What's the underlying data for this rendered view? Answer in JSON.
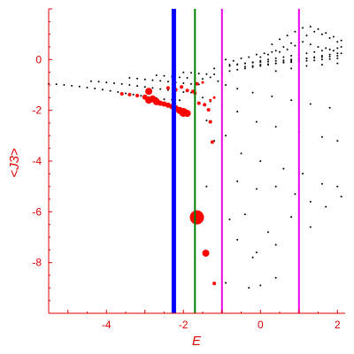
{
  "chart_data": {
    "type": "scatter",
    "title": "",
    "xlabel": "E",
    "ylabel": "<J3>",
    "xlim": [
      -5.5,
      2.2
    ],
    "ylim": [
      -10,
      2
    ],
    "x_ticks": [
      -4,
      -2,
      0,
      2
    ],
    "y_ticks": [
      -8,
      -6,
      -4,
      -2,
      0
    ],
    "grid": false,
    "colors": {
      "axis": "#e00000",
      "series_black": "#000000",
      "series_red": "#ff0000",
      "line_blue": "#0000ff",
      "line_green": "#008000",
      "line_magenta": "#ee00ee"
    },
    "vertical_lines": [
      {
        "x": -2.25,
        "color": "#0000ff",
        "width": 5
      },
      {
        "x": -1.7,
        "color": "#008000",
        "width": 2
      },
      {
        "x": -1.0,
        "color": "#ee00ee",
        "width": 2
      },
      {
        "x": 1.0,
        "color": "#ee00ee",
        "width": 2
      }
    ],
    "series": [
      {
        "color": "#000000",
        "points": [
          [
            -5.5,
            -0.95
          ],
          [
            -5.3,
            -0.97
          ],
          [
            -5.1,
            -1.0
          ],
          [
            -4.9,
            -1.03
          ],
          [
            -4.7,
            -1.06
          ],
          [
            -4.5,
            -1.1
          ],
          [
            -4.3,
            -1.14
          ],
          [
            -4.1,
            -1.18
          ],
          [
            -3.9,
            -1.23
          ],
          [
            -3.7,
            -1.28
          ],
          [
            -3.5,
            -1.33
          ],
          [
            -3.3,
            -1.38
          ],
          [
            -3.1,
            -1.43
          ],
          [
            -2.9,
            -1.48
          ],
          [
            -2.7,
            -1.52
          ],
          [
            -2.5,
            -1.56
          ],
          [
            -2.3,
            -1.58
          ],
          [
            -2.1,
            -1.6
          ],
          [
            -4.4,
            -0.85
          ],
          [
            -4.2,
            -0.87
          ],
          [
            -4.0,
            -0.9
          ],
          [
            -3.8,
            -0.93
          ],
          [
            -3.6,
            -0.96
          ],
          [
            -3.4,
            -1.0
          ],
          [
            -3.2,
            -1.04
          ],
          [
            -3.0,
            -1.08
          ],
          [
            -2.8,
            -1.12
          ],
          [
            -2.6,
            -1.16
          ],
          [
            -2.4,
            -1.2
          ],
          [
            -2.2,
            -1.24
          ],
          [
            -2.0,
            -1.28
          ],
          [
            -1.8,
            -1.3
          ],
          [
            -3.4,
            -0.72
          ],
          [
            -3.2,
            -0.75
          ],
          [
            -3.0,
            -0.78
          ],
          [
            -2.8,
            -0.81
          ],
          [
            -2.6,
            -0.84
          ],
          [
            -2.4,
            -0.87
          ],
          [
            -2.2,
            -0.9
          ],
          [
            -2.0,
            -0.93
          ],
          [
            -1.8,
            -0.96
          ],
          [
            -1.6,
            -0.98
          ],
          [
            -2.7,
            -0.62
          ],
          [
            -2.5,
            -0.64
          ],
          [
            -2.3,
            -0.67
          ],
          [
            -2.1,
            -0.7
          ],
          [
            -1.9,
            -0.72
          ],
          [
            -1.7,
            -0.74
          ],
          [
            -1.5,
            -0.76
          ],
          [
            -2.0,
            -0.5
          ],
          [
            -1.8,
            -0.52
          ],
          [
            -1.6,
            -0.55
          ],
          [
            -1.4,
            -0.57
          ],
          [
            -1.2,
            -0.58
          ],
          [
            -1.0,
            -0.5
          ],
          [
            -0.8,
            -0.45
          ],
          [
            -0.6,
            -0.4
          ],
          [
            -0.4,
            -0.35
          ],
          [
            -0.2,
            -0.3
          ],
          [
            0.0,
            -0.25
          ],
          [
            0.2,
            -0.2
          ],
          [
            0.4,
            -0.15
          ],
          [
            0.6,
            -0.1
          ],
          [
            0.8,
            -0.05
          ],
          [
            1.0,
            0.0
          ],
          [
            1.2,
            0.05
          ],
          [
            1.4,
            0.1
          ],
          [
            1.6,
            0.15
          ],
          [
            1.8,
            0.2
          ],
          [
            2.0,
            0.25
          ],
          [
            -1.2,
            -0.35
          ],
          [
            -1.0,
            -0.3
          ],
          [
            -0.8,
            -0.25
          ],
          [
            -0.6,
            -0.2
          ],
          [
            -0.4,
            -0.15
          ],
          [
            -0.2,
            -0.1
          ],
          [
            0.0,
            -0.05
          ],
          [
            0.2,
            0.0
          ],
          [
            0.4,
            0.05
          ],
          [
            0.6,
            0.1
          ],
          [
            0.8,
            0.15
          ],
          [
            1.0,
            0.2
          ],
          [
            1.2,
            0.25
          ],
          [
            1.4,
            0.3
          ],
          [
            1.6,
            0.35
          ],
          [
            1.8,
            0.4
          ],
          [
            2.0,
            0.45
          ],
          [
            -0.8,
            -0.2
          ],
          [
            -0.6,
            -0.18
          ],
          [
            -0.4,
            -0.15
          ],
          [
            -0.2,
            -0.12
          ],
          [
            0.0,
            -0.1
          ],
          [
            0.2,
            -0.08
          ],
          [
            0.4,
            -0.05
          ],
          [
            0.6,
            -0.03
          ],
          [
            0.8,
            0.0
          ],
          [
            1.0,
            0.02
          ],
          [
            1.2,
            0.05
          ],
          [
            1.4,
            0.07
          ],
          [
            1.6,
            0.1
          ],
          [
            1.8,
            0.12
          ],
          [
            2.0,
            0.15
          ],
          [
            -0.4,
            -0.28
          ],
          [
            -0.2,
            -0.25
          ],
          [
            0.0,
            -0.2
          ],
          [
            0.2,
            -0.18
          ],
          [
            0.4,
            -0.15
          ],
          [
            0.6,
            -0.12
          ],
          [
            0.8,
            -0.1
          ],
          [
            1.0,
            -0.08
          ],
          [
            1.2,
            -0.05
          ],
          [
            1.4,
            -0.03
          ],
          [
            1.6,
            0.0
          ],
          [
            1.8,
            0.02
          ],
          [
            2.0,
            0.05
          ],
          [
            0.0,
            0.1
          ],
          [
            0.2,
            0.2
          ],
          [
            0.4,
            0.35
          ],
          [
            0.6,
            0.5
          ],
          [
            0.8,
            0.65
          ],
          [
            1.0,
            0.8
          ],
          [
            1.2,
            0.95
          ],
          [
            1.4,
            1.1
          ],
          [
            1.6,
            1.0
          ],
          [
            1.8,
            0.85
          ],
          [
            2.0,
            0.7
          ],
          [
            2.1,
            0.5
          ],
          [
            0.3,
            0.6
          ],
          [
            0.5,
            0.8
          ],
          [
            0.7,
            0.95
          ],
          [
            0.9,
            1.1
          ],
          [
            1.1,
            1.25
          ],
          [
            1.3,
            1.3
          ],
          [
            1.5,
            1.2
          ],
          [
            1.7,
            1.05
          ],
          [
            1.9,
            0.9
          ],
          [
            2.1,
            0.75
          ],
          [
            0.5,
            0.3
          ],
          [
            0.7,
            0.4
          ],
          [
            0.9,
            0.55
          ],
          [
            1.1,
            0.7
          ],
          [
            1.3,
            0.6
          ],
          [
            1.5,
            0.5
          ],
          [
            1.7,
            0.45
          ],
          [
            1.9,
            0.35
          ],
          [
            2.1,
            0.25
          ],
          [
            0.4,
            -0.45
          ],
          [
            0.8,
            -0.35
          ],
          [
            1.2,
            -0.25
          ],
          [
            1.6,
            -0.2
          ],
          [
            2.0,
            -0.15
          ],
          [
            -0.9,
            0.0
          ],
          [
            -0.7,
            -0.05
          ],
          [
            -0.5,
            0.05
          ],
          [
            -0.3,
            0.1
          ],
          [
            -0.1,
            0.2
          ],
          [
            0.1,
            0.25
          ],
          [
            0.3,
            0.3
          ],
          [
            -1.3,
            -0.7
          ],
          [
            -1.1,
            -0.85
          ],
          [
            -0.9,
            -1.0
          ],
          [
            -0.6,
            -1.15
          ],
          [
            -0.2,
            -1.3
          ],
          [
            0.3,
            -1.45
          ],
          [
            0.8,
            -1.6
          ],
          [
            1.3,
            -1.75
          ],
          [
            1.8,
            -1.9
          ],
          [
            -1.5,
            -1.5
          ],
          [
            -1.3,
            -1.65
          ],
          [
            -1.0,
            -1.8
          ],
          [
            -0.6,
            -2.05
          ],
          [
            -0.1,
            -2.45
          ],
          [
            0.4,
            -2.65
          ],
          [
            1.0,
            -2.85
          ],
          [
            1.6,
            -3.05
          ],
          [
            2.0,
            -3.2
          ],
          [
            -1.4,
            -2.4
          ],
          [
            -0.9,
            -3.0
          ],
          [
            -0.5,
            -3.7
          ],
          [
            0.0,
            -4.0
          ],
          [
            0.6,
            -4.3
          ],
          [
            1.1,
            -4.5
          ],
          [
            1.6,
            -4.9
          ],
          [
            2.0,
            -5.0
          ],
          [
            -1.2,
            -3.2
          ],
          [
            -0.6,
            -4.8
          ],
          [
            -0.1,
            -5.1
          ],
          [
            0.4,
            -5.0
          ],
          [
            0.9,
            -5.3
          ],
          [
            1.3,
            -5.6
          ],
          [
            1.7,
            -5.8
          ],
          [
            2.1,
            -5.4
          ],
          [
            -1.4,
            -5.0
          ],
          [
            -0.8,
            -6.3
          ],
          [
            -0.4,
            -6.1
          ],
          [
            0.2,
            -6.8
          ],
          [
            0.8,
            -6.2
          ],
          [
            1.3,
            -6.6
          ],
          [
            -0.6,
            -7.1
          ],
          [
            -0.1,
            -7.6
          ],
          [
            0.4,
            -7.3
          ],
          [
            -0.9,
            -8.8
          ],
          [
            -0.3,
            -9.0
          ],
          [
            0.0,
            -8.9
          ],
          [
            0.4,
            -8.6
          ],
          [
            -0.2,
            -7.8
          ]
        ]
      },
      {
        "color": "#ff0000",
        "points": [
          [
            -3.6,
            -1.35,
            2
          ],
          [
            -3.4,
            -1.38,
            2
          ],
          [
            -3.2,
            -1.42,
            2
          ],
          [
            -3.0,
            -1.48,
            3
          ],
          [
            -2.8,
            -1.55,
            4
          ],
          [
            -2.9,
            -1.6,
            4
          ],
          [
            -2.7,
            -1.66,
            4
          ],
          [
            -2.6,
            -1.72,
            3
          ],
          [
            -2.5,
            -1.75,
            3
          ],
          [
            -2.4,
            -1.8,
            3
          ],
          [
            -2.3,
            -1.85,
            3
          ],
          [
            -2.2,
            -1.9,
            3
          ],
          [
            -2.1,
            -2.0,
            4
          ],
          [
            -2.0,
            -2.08,
            5
          ],
          [
            -1.9,
            -2.12,
            4
          ],
          [
            -2.9,
            -1.25,
            4
          ],
          [
            -2.4,
            -1.12,
            2
          ],
          [
            -2.2,
            -1.18,
            2
          ],
          [
            -1.9,
            -1.22,
            2
          ],
          [
            -1.75,
            -1.25,
            2
          ],
          [
            -1.7,
            -1.32,
            2
          ],
          [
            -2.05,
            -1.08,
            2
          ],
          [
            -1.65,
            -0.95,
            2
          ],
          [
            -1.5,
            -0.9,
            1.5
          ],
          [
            -1.6,
            -1.72,
            2
          ],
          [
            -1.45,
            -1.78,
            2
          ],
          [
            -1.35,
            -1.98,
            2
          ],
          [
            -1.3,
            -2.45,
            2
          ],
          [
            -1.3,
            -1.6,
            1.5
          ],
          [
            -1.2,
            -1.5,
            1.5
          ],
          [
            -1.65,
            -6.22,
            8
          ],
          [
            -1.42,
            -7.63,
            4
          ],
          [
            -1.2,
            -8.82,
            2
          ],
          [
            -1.25,
            -3.25,
            2
          ]
        ]
      }
    ]
  }
}
